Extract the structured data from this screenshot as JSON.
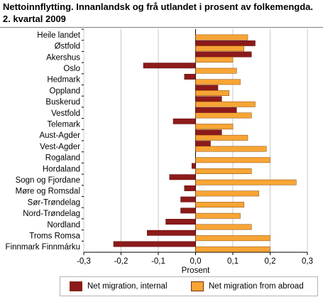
{
  "header": {
    "title_line1": "Nettoinnflytting. Innanlandsk og frå utlandet i prosent av folkemengda.",
    "title_line2": "2. kvartal 2009"
  },
  "colors": {
    "internal": "#8c1a1a",
    "abroad": "#f7a535",
    "grid": "#c8c8c8",
    "axis": "#000000"
  },
  "chart_data": {
    "type": "bar",
    "orientation": "horizontal",
    "categories": [
      "Heile landet",
      "Østfold",
      "Akershus",
      "Oslo",
      "Hedmark",
      "Oppland",
      "Buskerud",
      "Vestfold",
      "Telemark",
      "Aust-Agder",
      "Vest-Agder",
      "Rogaland",
      "Hordaland",
      "Sogn og Fjordane",
      "Møre og Romsdal",
      "Sør-Trøndelag",
      "Nord-Trøndelag",
      "Nordland",
      "Troms Romsa",
      "Finnmark Finnmárku"
    ],
    "series": [
      {
        "name": "Net migration, internal",
        "values": [
          0,
          0.16,
          0.15,
          -0.14,
          -0.03,
          0.06,
          0.07,
          0.11,
          -0.06,
          0.07,
          0.04,
          0,
          -0.01,
          -0.07,
          -0.03,
          -0.04,
          -0.04,
          -0.08,
          -0.13,
          -0.22
        ]
      },
      {
        "name": "Net migration from abroad",
        "values": [
          0.14,
          0.13,
          0.1,
          0.11,
          0.12,
          0.09,
          0.16,
          0.15,
          0.1,
          0.14,
          0.19,
          0.2,
          0.15,
          0.27,
          0.17,
          0.13,
          0.12,
          0.15,
          0.2,
          0.2
        ]
      }
    ],
    "xlim": [
      -0.3,
      0.3
    ],
    "xticks": [
      -0.3,
      -0.2,
      -0.1,
      0.0,
      0.1,
      0.2,
      0.3
    ],
    "xtick_labels": [
      "-0,3",
      "-0,2",
      "-0,1",
      "0,0",
      "0,1",
      "0,2",
      "0,3"
    ],
    "xlabel": "Prosent",
    "grid": "vertical",
    "legend_position": "bottom"
  }
}
